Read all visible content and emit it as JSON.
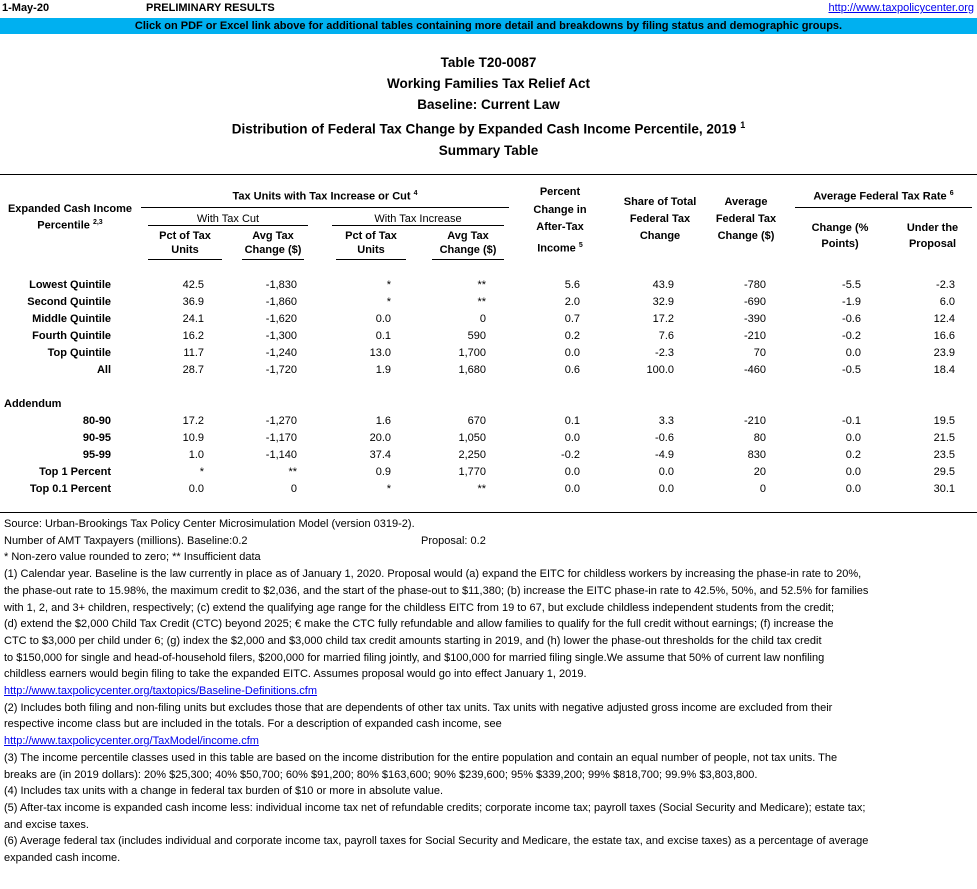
{
  "top": {
    "date": "1-May-20",
    "status": "PRELIMINARY RESULTS",
    "url": "http://www.taxpolicycenter.org",
    "banner": "Click on PDF or Excel link above for additional tables containing more detail and breakdowns by filing status and demographic groups."
  },
  "title": {
    "line1": "Table T20-0087",
    "line2": "Working Families Tax Relief Act",
    "line3": "Baseline: Current Law",
    "line4": "Distribution of Federal Tax Change by Expanded Cash Income Percentile, 2019",
    "line4_sup": "1",
    "line5": "Summary Table"
  },
  "headers": {
    "col0_a": "Expanded Cash Income",
    "col0_b": "Percentile",
    "col0_sup": "2,3",
    "group1": "Tax Units with Tax Increase or Cut",
    "group1_sup": "4",
    "cut": "With Tax Cut",
    "increase": "With Tax Increase",
    "pct_a": "Pct of Tax",
    "pct_b": "Units",
    "avg_a": "Avg Tax",
    "avg_b": "Change ($)",
    "pct2_a": "Pct of Tax",
    "pct2_b": "Units",
    "avg2_a": "Avg Tax",
    "avg2_b": "Change ($)",
    "after_a": "Percent",
    "after_b": "Change in",
    "after_c": "After-Tax",
    "after_d": "Income",
    "after_sup": "5",
    "share_a": "Share of Total",
    "share_b": "Federal Tax",
    "share_c": "Change",
    "avgfed_a": "Average",
    "avgfed_b": "Federal Tax",
    "avgfed_c": "Change ($)",
    "rate_group": "Average Federal Tax Rate",
    "rate_sup": "6",
    "rate_change_a": "Change (%",
    "rate_change_b": "Points)",
    "rate_under_a": "Under the",
    "rate_under_b": "Proposal"
  },
  "rows": [
    {
      "label": "Lowest Quintile",
      "c1": "42.5",
      "c2": "-1,830",
      "c3": "*",
      "c4": "**",
      "c5": "5.6",
      "c6": "43.9",
      "c7": "-780",
      "c8": "-5.5",
      "c9": "-2.3"
    },
    {
      "label": "Second Quintile",
      "c1": "36.9",
      "c2": "-1,860",
      "c3": "*",
      "c4": "**",
      "c5": "2.0",
      "c6": "32.9",
      "c7": "-690",
      "c8": "-1.9",
      "c9": "6.0"
    },
    {
      "label": "Middle Quintile",
      "c1": "24.1",
      "c2": "-1,620",
      "c3": "0.0",
      "c4": "0",
      "c5": "0.7",
      "c6": "17.2",
      "c7": "-390",
      "c8": "-0.6",
      "c9": "12.4"
    },
    {
      "label": "Fourth Quintile",
      "c1": "16.2",
      "c2": "-1,300",
      "c3": "0.1",
      "c4": "590",
      "c5": "0.2",
      "c6": "7.6",
      "c7": "-210",
      "c8": "-0.2",
      "c9": "16.6"
    },
    {
      "label": "Top Quintile",
      "c1": "11.7",
      "c2": "-1,240",
      "c3": "13.0",
      "c4": "1,700",
      "c5": "0.0",
      "c6": "-2.3",
      "c7": "70",
      "c8": "0.0",
      "c9": "23.9"
    },
    {
      "label": "All",
      "c1": "28.7",
      "c2": "-1,720",
      "c3": "1.9",
      "c4": "1,680",
      "c5": "0.6",
      "c6": "100.0",
      "c7": "-460",
      "c8": "-0.5",
      "c9": "18.4"
    }
  ],
  "addendum_label": "Addendum",
  "addendum": [
    {
      "label": "80-90",
      "c1": "17.2",
      "c2": "-1,270",
      "c3": "1.6",
      "c4": "670",
      "c5": "0.1",
      "c6": "3.3",
      "c7": "-210",
      "c8": "-0.1",
      "c9": "19.5"
    },
    {
      "label": "90-95",
      "c1": "10.9",
      "c2": "-1,170",
      "c3": "20.0",
      "c4": "1,050",
      "c5": "0.0",
      "c6": "-0.6",
      "c7": "80",
      "c8": "0.0",
      "c9": "21.5"
    },
    {
      "label": "95-99",
      "c1": "1.0",
      "c2": "-1,140",
      "c3": "37.4",
      "c4": "2,250",
      "c5": "-0.2",
      "c6": "-4.9",
      "c7": "830",
      "c8": "0.2",
      "c9": "23.5"
    },
    {
      "label": "Top 1 Percent",
      "c1": "*",
      "c2": "**",
      "c3": "0.9",
      "c4": "1,770",
      "c5": "0.0",
      "c6": "0.0",
      "c7": "20",
      "c8": "0.0",
      "c9": "29.5"
    },
    {
      "label": "Top 0.1 Percent",
      "c1": "0.0",
      "c2": "0",
      "c3": "*",
      "c4": "**",
      "c5": "0.0",
      "c6": "0.0",
      "c7": "0",
      "c8": "0.0",
      "c9": "30.1"
    }
  ],
  "footer": {
    "source": "Source: Urban-Brookings Tax Policy Center Microsimulation Model (version 0319-2).",
    "amt": "Number of AMT Taxpayers (millions).  Baseline:0.2",
    "amt_proposal": "Proposal: 0.2",
    "nonzero": "* Non-zero value rounded to zero; ** Insufficient data",
    "n1_a": "(1) Calendar year. Baseline is the law currently in place as of January 1, 2020. Proposal would (a) expand the EITC for childless workers by increasing the phase-in rate to 20%,",
    "n1_b": "the phase-out rate to 15.98%, the maximum credit to $2,036, and the start of the phase-out to $11,380; (b) increase the EITC phase-in rate to 42.5%, 50%, and 52.5% for families",
    "n1_c": "with 1, 2, and 3+ children, respectively; (c) extend the qualifying age range for the childless EITC from 19 to 67, but exclude childless independent students from the credit;",
    "n1_d": "(d) extend the $2,000 Child Tax Credit (CTC) beyond 2025; € make the CTC fully refundable and allow families to qualify for the full credit without earnings; (f) increase the",
    "n1_e": "CTC to $3,000 per child under 6; (g) index the $2,000 and $3,000 child tax credit amounts starting in 2019, and (h) lower the phase-out thresholds for the child tax credit",
    "n1_f": " to $150,000 for single and head-of-household filers, $200,000 for married filing jointly, and $100,000 for married filing single.We assume that 50% of current law nonfiling",
    "n1_g": "childless earners would begin filing to take the expanded EITC. Assumes proposal would go into effect January 1, 2019.",
    "n1_link": "http://www.taxpolicycenter.org/taxtopics/Baseline-Definitions.cfm",
    "n2_a": "(2) Includes both filing and non-filing units but excludes those that are dependents of other tax units. Tax units with negative adjusted gross income are excluded from their",
    "n2_b": "respective income class but are included in the totals. For a description of expanded cash income, see",
    "n2_link": "http://www.taxpolicycenter.org/TaxModel/income.cfm",
    "n3_a": "(3) The income percentile classes used in this table are based on the income distribution for the entire population and contain an equal number of people, not tax units. The",
    "n3_b": "breaks are (in 2019 dollars): 20% $25,300; 40% $50,700; 60% $91,200; 80% $163,600; 90% $239,600; 95% $339,200; 99% $818,700; 99.9% $3,803,800.",
    "n4": "(4) Includes tax units with a change in federal tax burden of $10 or more in absolute value.",
    "n5_a": "(5) After-tax income is expanded cash income less: individual income tax net of refundable credits; corporate income tax; payroll taxes (Social Security and Medicare); estate tax;",
    "n5_b": "and excise taxes.",
    "n6_a": "(6) Average federal tax (includes individual and corporate income tax, payroll taxes for Social Security and Medicare, the estate tax, and excise taxes) as a percentage of average",
    "n6_b": "expanded cash income."
  }
}
